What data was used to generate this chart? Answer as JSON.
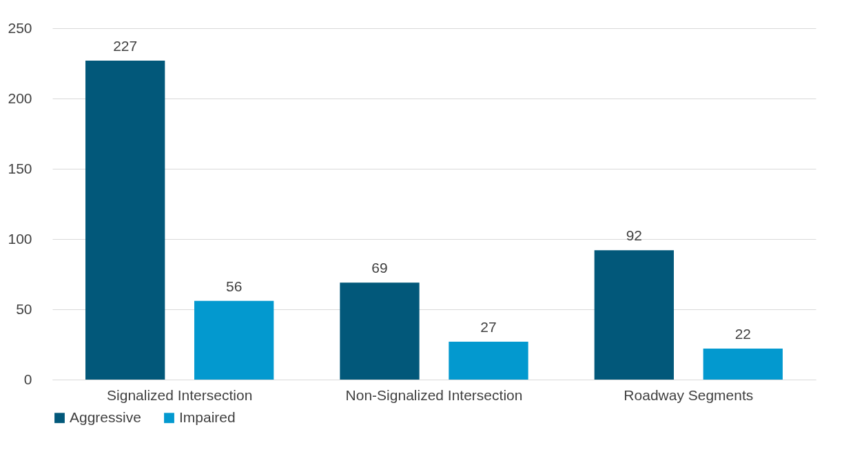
{
  "chart_data": {
    "type": "bar",
    "categories": [
      "Signalized Intersection",
      "Non-Signalized Intersection",
      "Roadway Segments"
    ],
    "series": [
      {
        "name": "Aggressive",
        "color": "#02587a",
        "values": [
          227,
          69,
          92
        ]
      },
      {
        "name": "Impaired",
        "color": "#0399cf",
        "values": [
          56,
          27,
          22
        ]
      }
    ],
    "ylim": [
      0,
      250
    ],
    "yticks": [
      0,
      50,
      100,
      150,
      200,
      250
    ],
    "grid": "y",
    "legend": "bottom",
    "data_labels": true
  }
}
